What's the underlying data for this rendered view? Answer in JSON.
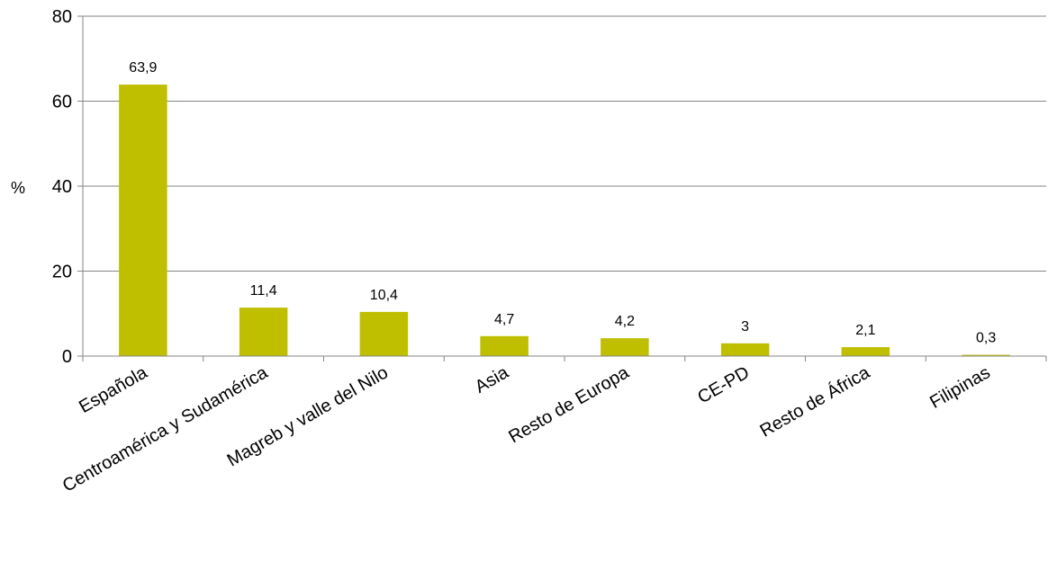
{
  "chart_data": {
    "type": "bar",
    "categories": [
      "Española",
      "Centroamérica y Sudamérica",
      "Magreb y valle del Nilo",
      "Asia",
      "Resto de Europa",
      "CE-PD",
      "Resto de África",
      "Filipinas"
    ],
    "values": [
      63.9,
      11.4,
      10.4,
      4.7,
      4.2,
      3,
      2.1,
      0.3
    ],
    "data_labels": [
      "63,9",
      "11,4",
      "10,4",
      "4,7",
      "4,2",
      "3",
      "2,1",
      "0,3"
    ],
    "ylabel": "%",
    "ylim": [
      0,
      80
    ],
    "yticks": [
      0,
      20,
      40,
      60,
      80
    ],
    "grid": true,
    "bar_color": "#BFBF00",
    "gridline_color": "#868686"
  }
}
